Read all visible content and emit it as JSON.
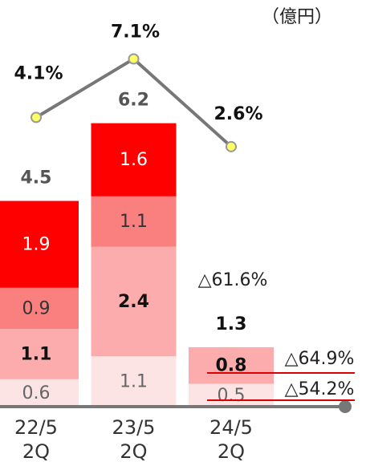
{
  "chart_data": {
    "type": "bar",
    "stacked": true,
    "categories": [
      "22/5\n2Q",
      "23/5\n2Q",
      "24/5\n2Q"
    ],
    "series": [
      {
        "color": "#fde4e4",
        "values": [
          0.6,
          1.1,
          0.5
        ]
      },
      {
        "color": "#fcacac",
        "values": [
          1.1,
          2.4,
          0.8
        ]
      },
      {
        "color": "#fa8080",
        "values": [
          0.9,
          1.1,
          null
        ]
      },
      {
        "color": "#ff0000",
        "values": [
          1.9,
          1.6,
          null
        ]
      },
      {
        "type": "line",
        "axis": "y2",
        "color": "#777777",
        "marker_color": "#ffff66",
        "values": [
          4.1,
          7.1,
          2.6
        ],
        "value_labels": [
          "4.1%",
          "7.1%",
          "2.6%"
        ]
      }
    ],
    "totals": [
      4.5,
      6.2,
      1.3
    ],
    "ylim": [
      0,
      8
    ],
    "y2lim": [
      0,
      10
    ],
    "annotations": [
      "（億円）",
      "△61.6%",
      "△64.9%",
      "△54.2%"
    ]
  }
}
